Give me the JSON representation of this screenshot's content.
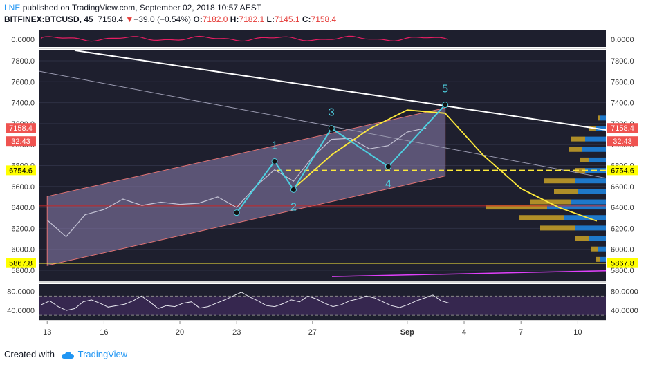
{
  "header": {
    "author": "LNE",
    "published_text": "published on TradingView.com, September 02, 2018 10:57 AEST",
    "symbol": "BITFINEX:BTCUSD, 45",
    "last": "7158.4",
    "change_arrow": "▼",
    "change": "−39.0 (−0.54%)",
    "open_label": "O:",
    "open": "7182.0",
    "high_label": "H:",
    "high": "7182.1",
    "low_label": "L:",
    "low": "7145.1",
    "close_label": "C:",
    "close": "7158.4"
  },
  "footer": {
    "created_with": "Created with",
    "brand": "TradingView"
  },
  "colors": {
    "channel_fill": "#8e7fb0",
    "channel_border": "#e57373",
    "wave": "#4dd0e1",
    "curve": "#ffeb3b",
    "support": "#ffeb3b",
    "resistance": "#ffffff",
    "magenta_line": "#e040fb",
    "volume_profile_up": "#1e88e5",
    "volume_profile_down": "#c9a227",
    "price_tag": "#ef5350",
    "level_tag": "#ffff00",
    "background": "#1e1f2e"
  },
  "chart_data": {
    "type": "line",
    "symbol": "BITFINEX:BTCUSD",
    "interval": "45",
    "x_ticks": [
      "13",
      "16",
      "20",
      "23",
      "27",
      "Sep",
      "4",
      "7",
      "10"
    ],
    "price_axis": {
      "ticks": [
        "7800.0",
        "7600.0",
        "7400.0",
        "7200.0",
        "7000.0",
        "6800.0",
        "6600.0",
        "6400.0",
        "6200.0",
        "6000.0",
        "5800.0"
      ],
      "ylim": [
        5760,
        7920
      ]
    },
    "price_tags": {
      "last_price": "7158.4",
      "countdown": "32:43",
      "resistance_level": "6754.6",
      "support_level": "5867.8"
    },
    "levels": {
      "red_line": 6415,
      "support": 5867.8,
      "dashed": 6754.6
    },
    "elliott_wave": {
      "labels": [
        "1",
        "2",
        "3",
        "4",
        "5"
      ],
      "points": [
        {
          "date": "Aug 23",
          "price": 6350
        },
        {
          "date": "Aug 25",
          "price": 6840
        },
        {
          "date": "Aug 26",
          "price": 6570
        },
        {
          "date": "Aug 28",
          "price": 7155
        },
        {
          "date": "Aug 31",
          "price": 6790
        },
        {
          "date": "Sep 3",
          "price": 7380
        }
      ]
    },
    "channel": {
      "upper": [
        {
          "date": "Aug 13",
          "price": 6505
        },
        {
          "date": "Sep 3",
          "price": 7350
        }
      ],
      "lower": [
        {
          "date": "Aug 13",
          "price": 5845
        },
        {
          "date": "Sep 3",
          "price": 6700
        }
      ]
    },
    "price_series": [
      {
        "date": "Aug 13",
        "price": 6280
      },
      {
        "date": "Aug 14",
        "price": 6120
      },
      {
        "date": "Aug 15",
        "price": 6330
      },
      {
        "date": "Aug 16",
        "price": 6380
      },
      {
        "date": "Aug 17",
        "price": 6480
      },
      {
        "date": "Aug 18",
        "price": 6420
      },
      {
        "date": "Aug 19",
        "price": 6450
      },
      {
        "date": "Aug 20",
        "price": 6430
      },
      {
        "date": "Aug 21",
        "price": 6440
      },
      {
        "date": "Aug 22",
        "price": 6500
      },
      {
        "date": "Aug 23",
        "price": 6400
      },
      {
        "date": "Aug 24",
        "price": 6600
      },
      {
        "date": "Aug 25",
        "price": 6760
      },
      {
        "date": "Aug 26",
        "price": 6650
      },
      {
        "date": "Aug 27",
        "price": 6880
      },
      {
        "date": "Aug 28",
        "price": 7050
      },
      {
        "date": "Aug 29",
        "price": 7060
      },
      {
        "date": "Aug 30",
        "price": 6960
      },
      {
        "date": "Aug 31",
        "price": 6990
      },
      {
        "date": "Sep 1",
        "price": 7120
      },
      {
        "date": "Sep 2",
        "price": 7158.4
      }
    ],
    "projection_curve": [
      {
        "date": "Aug 26",
        "price": 6580
      },
      {
        "date": "Aug 28",
        "price": 6900
      },
      {
        "date": "Aug 30",
        "price": 7150
      },
      {
        "date": "Sep 1",
        "price": 7330
      },
      {
        "date": "Sep 3",
        "price": 7300
      },
      {
        "date": "Sep 5",
        "price": 6900
      },
      {
        "date": "Sep 7",
        "price": 6580
      },
      {
        "date": "Sep 9",
        "price": 6400
      },
      {
        "date": "Sep 11",
        "price": 6270
      }
    ],
    "volume_profile": [
      {
        "price": 7250,
        "up": 8,
        "down": 4
      },
      {
        "price": 7150,
        "up": 15,
        "down": 10
      },
      {
        "price": 7050,
        "up": 30,
        "down": 20
      },
      {
        "price": 6950,
        "up": 35,
        "down": 18
      },
      {
        "price": 6850,
        "up": 25,
        "down": 12
      },
      {
        "price": 6750,
        "up": 30,
        "down": 15
      },
      {
        "price": 6650,
        "up": 45,
        "down": 45
      },
      {
        "price": 6550,
        "up": 40,
        "down": 35
      },
      {
        "price": 6450,
        "up": 50,
        "down": 60
      },
      {
        "price": 6400,
        "up": 85,
        "down": 88
      },
      {
        "price": 6300,
        "up": 60,
        "down": 65
      },
      {
        "price": 6200,
        "up": 45,
        "down": 50
      },
      {
        "price": 6100,
        "up": 25,
        "down": 20
      },
      {
        "price": 6000,
        "up": 12,
        "down": 10
      },
      {
        "price": 5900,
        "up": 8,
        "down": 6
      }
    ],
    "oscillator_top": {
      "ticks": [
        "0.0000"
      ]
    },
    "rsi_panel": {
      "ticks": [
        "80.0000",
        "40.0000"
      ],
      "ylim": [
        20,
        95
      ],
      "band": [
        30,
        70
      ],
      "values": [
        52,
        60,
        48,
        40,
        44,
        58,
        62,
        55,
        47,
        50,
        53,
        60,
        70,
        58,
        44,
        50,
        48,
        55,
        58,
        45,
        48,
        55,
        62,
        70,
        78,
        68,
        60,
        50,
        48,
        54,
        62,
        58,
        70,
        64,
        55,
        48,
        52,
        60,
        64,
        70,
        66,
        58,
        50,
        46,
        52,
        60,
        66,
        72,
        60,
        55
      ]
    }
  }
}
